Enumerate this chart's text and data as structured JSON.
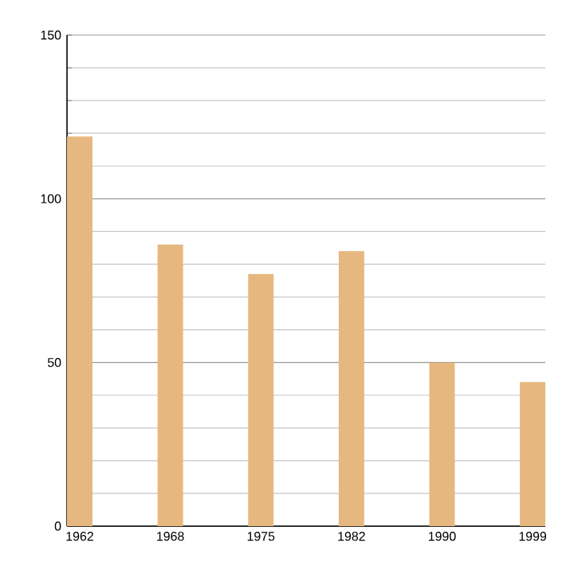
{
  "chart_data": {
    "type": "bar",
    "categories": [
      "1962",
      "1968",
      "1975",
      "1982",
      "1990",
      "1999"
    ],
    "values": [
      119,
      86,
      77,
      84,
      50,
      44
    ],
    "color": "#e6b87f",
    "ylim": [
      0,
      150
    ],
    "yticks": [
      0,
      {
        "value": 10,
        "label": null
      },
      {
        "value": 20,
        "label": null
      },
      {
        "value": 30,
        "label": null
      },
      {
        "value": 40,
        "label": null
      },
      50,
      {
        "value": 60,
        "label": null
      },
      {
        "value": 70,
        "label": null
      },
      {
        "value": 80,
        "label": null
      },
      {
        "value": 90,
        "label": null
      },
      100,
      {
        "value": 110,
        "label": null
      },
      {
        "value": 120,
        "label": null
      },
      {
        "value": 130,
        "label": null
      },
      {
        "value": 140,
        "label": null
      },
      150
    ],
    "grid": "y"
  }
}
